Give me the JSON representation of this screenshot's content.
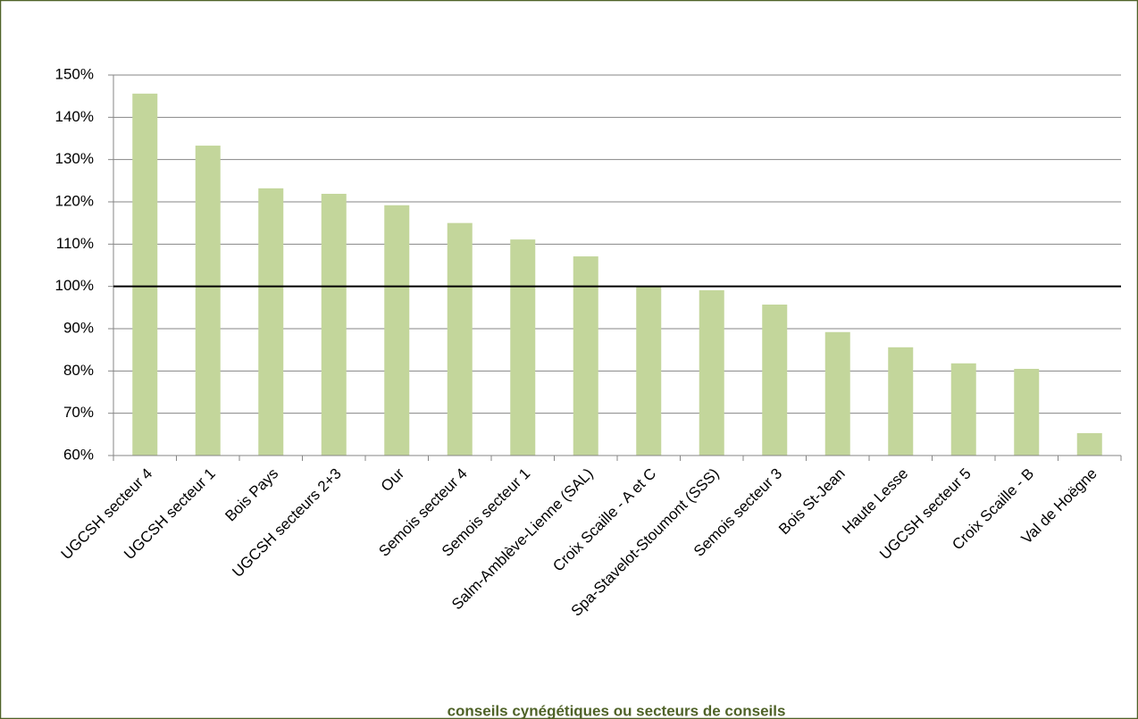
{
  "chart_data": {
    "type": "bar",
    "x_label": "conseils cynégétiques ou secteurs de conseils",
    "categories": [
      "UGCSH secteur 4",
      "UGCSH secteur 1",
      "Bois Pays",
      "UGCSH secteurs 2+3",
      "Our",
      "Semois secteur 4",
      "Semois secteur 1",
      "Salm-Amblève-Lienne (SAL)",
      "Croix Scaille - A et C",
      "Spa-Stavelot-Stoumont (SSS)",
      "Semois secteur 3",
      "Bois St-Jean",
      "Haute Lesse",
      "UGCSH secteur 5",
      "Croix Scaille - B",
      "Val de Hoëgne"
    ],
    "values": [
      145.6,
      133.3,
      123.2,
      121.9,
      119.2,
      115,
      111.1,
      107.1,
      100,
      99.1,
      95.7,
      89.2,
      85.6,
      81.8,
      80.5,
      65.3
    ],
    "color": "#c3d69b",
    "ylim": [
      60,
      150
    ],
    "yticks": [
      {
        "value": 60,
        "label": "60%"
      },
      {
        "value": 70,
        "label": "70%"
      },
      {
        "value": 80,
        "label": "80%"
      },
      {
        "value": 90,
        "label": "90%"
      },
      {
        "value": 100,
        "label": "100%"
      },
      {
        "value": 110,
        "label": "110%"
      },
      {
        "value": 120,
        "label": "120%"
      },
      {
        "value": 130,
        "label": "130%"
      },
      {
        "value": 140,
        "label": "140%"
      },
      {
        "value": 150,
        "label": "150%"
      }
    ],
    "grid": true,
    "reference_line": 100
  }
}
